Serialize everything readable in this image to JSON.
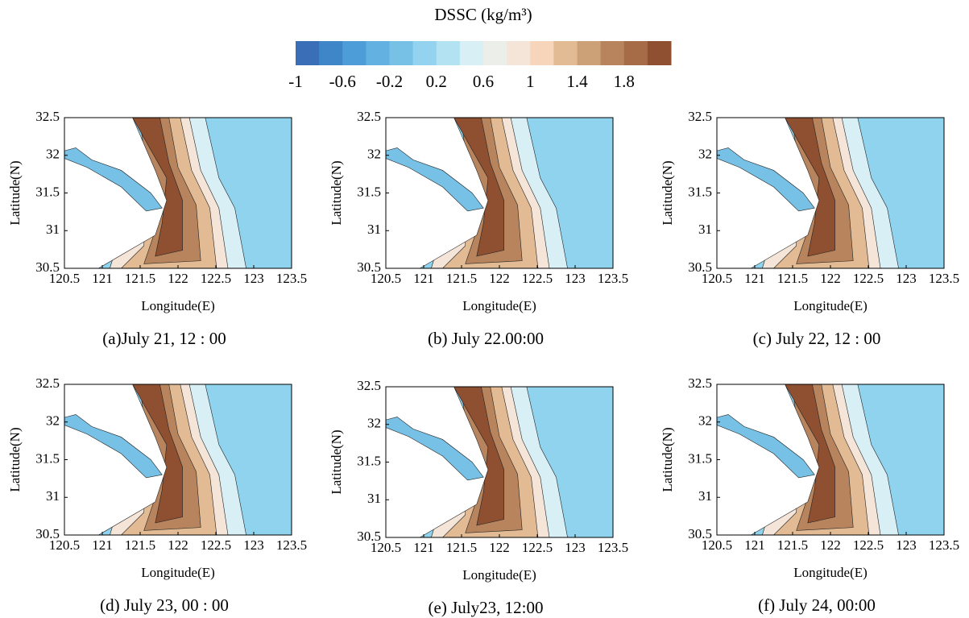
{
  "colorbar": {
    "title": "DSSC (kg/m³)",
    "lim": [
      -1,
      2.2
    ],
    "colors": [
      "#3a6fb8",
      "#3f86c8",
      "#4d9dd9",
      "#63b1e0",
      "#78c1e6",
      "#93d3ef",
      "#b3e2f2",
      "#d8eff6",
      "#ecefe9",
      "#f4e5d8",
      "#f6d5bb",
      "#e2bb94",
      "#cda178",
      "#b7845d",
      "#a66c47",
      "#8f4f31"
    ],
    "ticks": [
      -1,
      -0.6,
      -0.2,
      0.2,
      0.6,
      1,
      1.4,
      1.8
    ]
  },
  "chart_data": [
    {
      "type": "contour",
      "caption": "(a)July 21, 12 : 00",
      "xlabel": "Longitude(E)",
      "ylabel": "Latitude(N)",
      "xlim": [
        120.5,
        123.5
      ],
      "ylim": [
        30.5,
        32.5
      ],
      "xticks": [
        120.5,
        121,
        121.5,
        122,
        122.5,
        123,
        123.5
      ],
      "yticks": [
        30.5,
        31,
        31.5,
        32,
        32.5
      ]
    },
    {
      "type": "contour",
      "caption": "(b) July 22.00:00",
      "xlabel": "Longitude(E)",
      "ylabel": "Latitude(N)",
      "xlim": [
        120.5,
        123.5
      ],
      "ylim": [
        30.5,
        32.5
      ],
      "xticks": [
        120.5,
        121,
        121.5,
        122,
        122.5,
        123,
        123.5
      ],
      "yticks": [
        30.5,
        31,
        31.5,
        32,
        32.5
      ]
    },
    {
      "type": "contour",
      "caption": "(c) July 22, 12 : 00",
      "xlabel": "Longitude(E)",
      "ylabel": "Latitude(N)",
      "xlim": [
        120.5,
        123.5
      ],
      "ylim": [
        30.5,
        32.5
      ],
      "xticks": [
        120.5,
        121,
        121.5,
        122,
        122.5,
        123,
        123.5
      ],
      "yticks": [
        30.5,
        31,
        31.5,
        32,
        32.5
      ]
    },
    {
      "type": "contour",
      "caption": "(d) July 23, 00 : 00",
      "xlabel": "Longitude(E)",
      "ylabel": "Latitude(N)",
      "xlim": [
        120.5,
        123.5
      ],
      "ylim": [
        30.5,
        32.5
      ],
      "xticks": [
        120.5,
        121,
        121.5,
        122,
        122.5,
        123,
        123.5
      ],
      "yticks": [
        30.5,
        31,
        31.5,
        32,
        32.5
      ]
    },
    {
      "type": "contour",
      "caption": "(e) July23, 12:00",
      "xlabel": "Longitude(E)",
      "ylabel": "Latitude(N)",
      "xlim": [
        120.5,
        123.5
      ],
      "ylim": [
        30.5,
        32.5
      ],
      "xticks": [
        120.5,
        121,
        121.5,
        122,
        122.5,
        123,
        123.5
      ],
      "yticks": [
        30.5,
        31,
        31.5,
        32,
        32.5
      ]
    },
    {
      "type": "contour",
      "caption": "(f) July 24, 00:00",
      "xlabel": "Longitude(E)",
      "ylabel": "Latitude(N)",
      "xlim": [
        120.5,
        123.5
      ],
      "ylim": [
        30.5,
        32.5
      ],
      "xticks": [
        120.5,
        121,
        121.5,
        122,
        122.5,
        123,
        123.5
      ],
      "yticks": [
        30.5,
        31,
        31.5,
        32,
        32.5
      ]
    }
  ]
}
